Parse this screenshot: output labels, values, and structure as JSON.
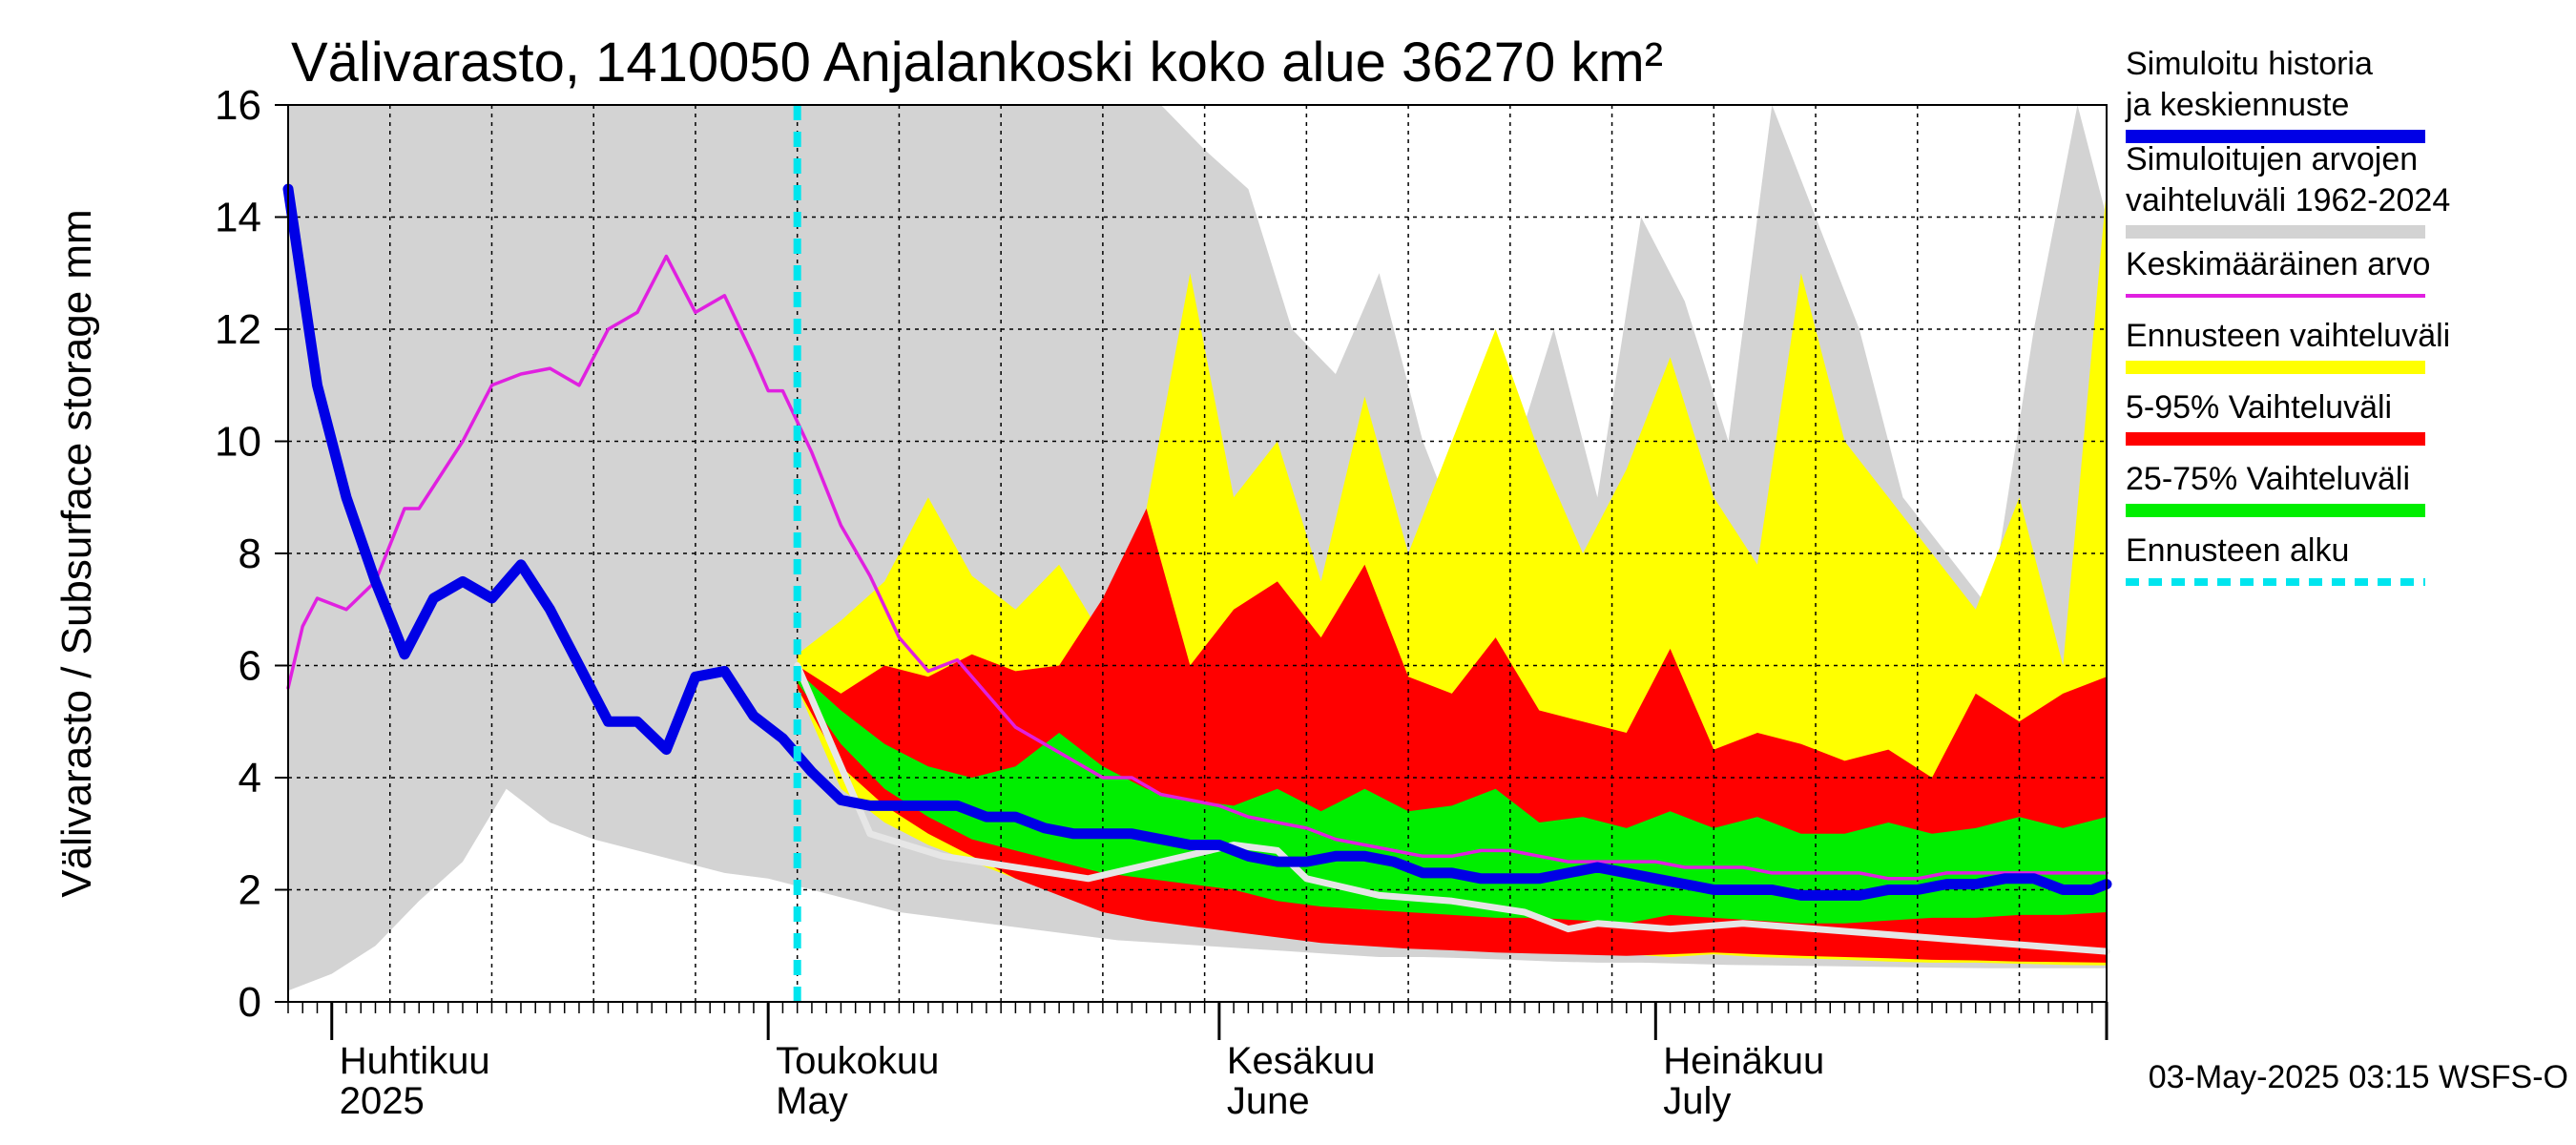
{
  "chart_data": {
    "type": "area",
    "title": "Välivarasto, 1410050 Anjalankoski koko alue 36270 km²",
    "ylabel": "Välivarasto / Subsurface storage  mm",
    "ylim": [
      0,
      16
    ],
    "yticks": [
      "0",
      "2",
      "4",
      "6",
      "8",
      "10",
      "12",
      "14",
      "16"
    ],
    "xlim": [
      "2025-03-29",
      "2025-08-01"
    ],
    "month_labels": [
      {
        "fi": "Huhtikuu",
        "en": "2025",
        "date": "2025-04-01"
      },
      {
        "fi": "Toukokuu",
        "en": "May",
        "date": "2025-05-01"
      },
      {
        "fi": "Kesäkuu",
        "en": "June",
        "date": "2025-06-01"
      },
      {
        "fi": "Heinäkuu",
        "en": "July",
        "date": "2025-07-01"
      }
    ],
    "forecast_start": "2025-05-03",
    "footer": "03-May-2025 03:15 WSFS-O",
    "grid": true,
    "legend_position": "right",
    "legend": [
      {
        "label": "Simuloitu historia ja keskiennuste",
        "color": "#0000e6",
        "style": "thick"
      },
      {
        "label": "Simuloitujen arvojen vaihteluväli 1962-2024",
        "color": "#d3d3d3",
        "style": "thick"
      },
      {
        "label": "Keskimääräinen arvo",
        "color": "#e020e0",
        "style": "thin"
      },
      {
        "label": "Ennusteen vaihteluväli",
        "color": "#ffff00",
        "style": "thick"
      },
      {
        "label": "5-95% Vaihteluväli",
        "color": "#ff0000",
        "style": "thick"
      },
      {
        "label": "25-75% Vaihteluväli",
        "color": "#00ee00",
        "style": "thick"
      },
      {
        "label": "Ennusteen alku",
        "color": "#00e5ee",
        "style": "dashed"
      }
    ],
    "series": {
      "history_range": {
        "days": [
          0,
          3,
          6,
          9,
          12,
          15,
          18,
          21,
          24,
          27,
          30,
          33,
          36,
          39,
          42,
          45,
          48,
          51,
          54,
          57,
          60,
          63,
          66,
          69,
          72,
          75,
          78,
          81,
          84,
          87,
          90,
          93,
          96,
          99,
          102,
          105,
          108,
          111,
          114,
          117,
          120,
          123,
          125
        ],
        "upper": [
          16,
          16,
          16,
          16,
          16,
          16,
          16,
          16,
          16,
          16,
          16,
          16,
          16,
          16,
          16,
          16,
          16,
          16,
          16,
          16,
          16,
          15.2,
          14.5,
          12,
          11.2,
          13,
          10,
          8,
          9.5,
          12,
          9,
          14,
          12.5,
          10,
          16,
          14,
          12,
          9,
          8,
          7,
          12,
          16,
          14
        ],
        "lower": [
          0.2,
          0.5,
          1,
          1.8,
          2.5,
          3.8,
          3.2,
          2.9,
          2.7,
          2.5,
          2.3,
          2.2,
          2.0,
          1.8,
          1.6,
          1.5,
          1.4,
          1.3,
          1.2,
          1.1,
          1.05,
          1.0,
          0.95,
          0.9,
          0.85,
          0.8,
          0.8,
          0.78,
          0.75,
          0.72,
          0.7,
          0.7,
          0.68,
          0.66,
          0.65,
          0.64,
          0.63,
          0.62,
          0.61,
          0.6,
          0.6,
          0.6,
          0.6
        ]
      },
      "forecast_range": {
        "days": [
          35,
          38,
          41,
          44,
          47,
          50,
          53,
          56,
          59,
          62,
          65,
          68,
          71,
          74,
          77,
          80,
          83,
          86,
          89,
          92,
          95,
          98,
          101,
          104,
          107,
          110,
          113,
          116,
          119,
          122,
          125
        ],
        "upper": [
          6.2,
          6.8,
          7.5,
          9,
          7.6,
          7,
          7.8,
          6.5,
          8.8,
          13,
          9,
          10,
          7.5,
          10.8,
          8,
          10,
          12,
          9.8,
          8,
          9.5,
          11.5,
          9,
          7.8,
          13,
          10,
          9,
          8,
          7,
          9,
          6,
          14.5
        ],
        "lower": [
          5.6,
          3.8,
          3.2,
          2.8,
          2.5,
          2.2,
          2.0,
          1.8,
          1.6,
          1.5,
          1.4,
          1.3,
          1.2,
          1.1,
          1.05,
          1.0,
          0.95,
          0.9,
          0.9,
          0.85,
          0.8,
          0.85,
          0.8,
          0.78,
          0.75,
          0.72,
          0.7,
          0.7,
          0.68,
          0.66,
          0.65
        ]
      },
      "p5_95": {
        "days": [
          35,
          38,
          41,
          44,
          47,
          50,
          53,
          56,
          59,
          62,
          65,
          68,
          71,
          74,
          77,
          80,
          83,
          86,
          89,
          92,
          95,
          98,
          101,
          104,
          107,
          110,
          113,
          116,
          119,
          122,
          125
        ],
        "upper": [
          6.0,
          5.5,
          6.0,
          5.8,
          6.2,
          5.9,
          6.0,
          7.2,
          8.8,
          6.0,
          7.0,
          7.5,
          6.5,
          7.8,
          5.8,
          5.5,
          6.5,
          5.2,
          5.0,
          4.8,
          6.3,
          4.5,
          4.8,
          4.6,
          4.3,
          4.5,
          4.0,
          5.5,
          5.0,
          5.5,
          5.8
        ],
        "lower": [
          5.6,
          4.2,
          3.5,
          3.0,
          2.6,
          2.2,
          1.9,
          1.6,
          1.45,
          1.35,
          1.25,
          1.15,
          1.05,
          1.0,
          0.95,
          0.92,
          0.88,
          0.86,
          0.84,
          0.82,
          0.85,
          0.88,
          0.85,
          0.82,
          0.8,
          0.78,
          0.75,
          0.74,
          0.72,
          0.71,
          0.7
        ]
      },
      "p25_75": {
        "days": [
          35,
          38,
          41,
          44,
          47,
          50,
          53,
          56,
          59,
          62,
          65,
          68,
          71,
          74,
          77,
          80,
          83,
          86,
          89,
          92,
          95,
          98,
          101,
          104,
          107,
          110,
          113,
          116,
          119,
          122,
          125
        ],
        "upper": [
          5.9,
          5.2,
          4.6,
          4.2,
          4.0,
          4.2,
          4.8,
          4.2,
          3.8,
          3.6,
          3.5,
          3.8,
          3.4,
          3.8,
          3.4,
          3.5,
          3.8,
          3.2,
          3.3,
          3.1,
          3.4,
          3.1,
          3.3,
          3.0,
          3.0,
          3.2,
          3.0,
          3.1,
          3.3,
          3.1,
          3.3
        ],
        "lower": [
          5.7,
          4.6,
          3.8,
          3.3,
          2.9,
          2.7,
          2.5,
          2.3,
          2.2,
          2.1,
          2.0,
          1.8,
          1.7,
          1.65,
          1.6,
          1.55,
          1.5,
          1.5,
          1.45,
          1.4,
          1.55,
          1.5,
          1.45,
          1.4,
          1.4,
          1.45,
          1.5,
          1.5,
          1.55,
          1.55,
          1.6
        ]
      },
      "simulated_mean": {
        "days": [
          0,
          2,
          4,
          6,
          8,
          10,
          12,
          14,
          16,
          18,
          20,
          22,
          24,
          26,
          28,
          30,
          32,
          34,
          36,
          38,
          40,
          42,
          44,
          46,
          48,
          50,
          52,
          54,
          56,
          58,
          60,
          62,
          64,
          66,
          68,
          70,
          72,
          74,
          76,
          78,
          80,
          82,
          84,
          86,
          88,
          90,
          92,
          94,
          96,
          98,
          100,
          102,
          104,
          106,
          108,
          110,
          112,
          114,
          116,
          118,
          120,
          122,
          124,
          125
        ],
        "values": [
          14.5,
          11,
          9,
          7.5,
          6.2,
          7.2,
          7.5,
          7.2,
          7.8,
          7.0,
          6.0,
          5.0,
          5.0,
          4.5,
          5.8,
          5.9,
          5.1,
          4.7,
          4.1,
          3.6,
          3.5,
          3.5,
          3.5,
          3.5,
          3.3,
          3.3,
          3.1,
          3.0,
          3.0,
          3.0,
          2.9,
          2.8,
          2.8,
          2.6,
          2.5,
          2.5,
          2.6,
          2.6,
          2.5,
          2.3,
          2.3,
          2.2,
          2.2,
          2.2,
          2.3,
          2.4,
          2.3,
          2.2,
          2.1,
          2.0,
          2.0,
          2.0,
          1.9,
          1.9,
          1.9,
          2.0,
          2.0,
          2.1,
          2.1,
          2.2,
          2.2,
          2.0,
          2.0,
          2.1
        ]
      },
      "long_term_mean": {
        "days": [
          0,
          1,
          2,
          4,
          6,
          8,
          9,
          10,
          12,
          14,
          16,
          18,
          20,
          22,
          24,
          26,
          28,
          30,
          32,
          33,
          34,
          36,
          38,
          40,
          42,
          44,
          46,
          48,
          50,
          52,
          54,
          56,
          58,
          60,
          62,
          64,
          66,
          68,
          70,
          72,
          74,
          76,
          78,
          80,
          82,
          84,
          86,
          88,
          90,
          92,
          94,
          96,
          98,
          100,
          102,
          104,
          106,
          108,
          110,
          112,
          114,
          116,
          118,
          120,
          122,
          124,
          125
        ],
        "values": [
          5.6,
          6.7,
          7.2,
          7.0,
          7.5,
          8.8,
          8.8,
          9.2,
          10.0,
          11.0,
          11.2,
          11.3,
          11.0,
          12.0,
          12.3,
          13.3,
          12.3,
          12.6,
          11.5,
          10.9,
          10.9,
          9.8,
          8.5,
          7.6,
          6.5,
          5.9,
          6.1,
          5.5,
          4.9,
          4.6,
          4.3,
          4.0,
          4.0,
          3.7,
          3.6,
          3.5,
          3.3,
          3.2,
          3.1,
          2.9,
          2.8,
          2.7,
          2.6,
          2.6,
          2.7,
          2.7,
          2.6,
          2.5,
          2.5,
          2.5,
          2.5,
          2.4,
          2.4,
          2.4,
          2.3,
          2.3,
          2.3,
          2.3,
          2.2,
          2.2,
          2.3,
          2.3,
          2.3,
          2.3,
          2.3,
          2.3,
          2.3
        ]
      },
      "white_line": {
        "days": [
          35,
          40,
          45,
          50,
          55,
          60,
          65,
          68,
          70,
          75,
          80,
          85,
          88,
          90,
          95,
          100,
          105,
          110,
          115,
          120,
          125
        ],
        "values": [
          6.0,
          3.0,
          2.6,
          2.4,
          2.2,
          2.5,
          2.8,
          2.7,
          2.2,
          1.9,
          1.8,
          1.6,
          1.3,
          1.4,
          1.3,
          1.4,
          1.3,
          1.2,
          1.1,
          1.0,
          0.9
        ]
      }
    }
  }
}
